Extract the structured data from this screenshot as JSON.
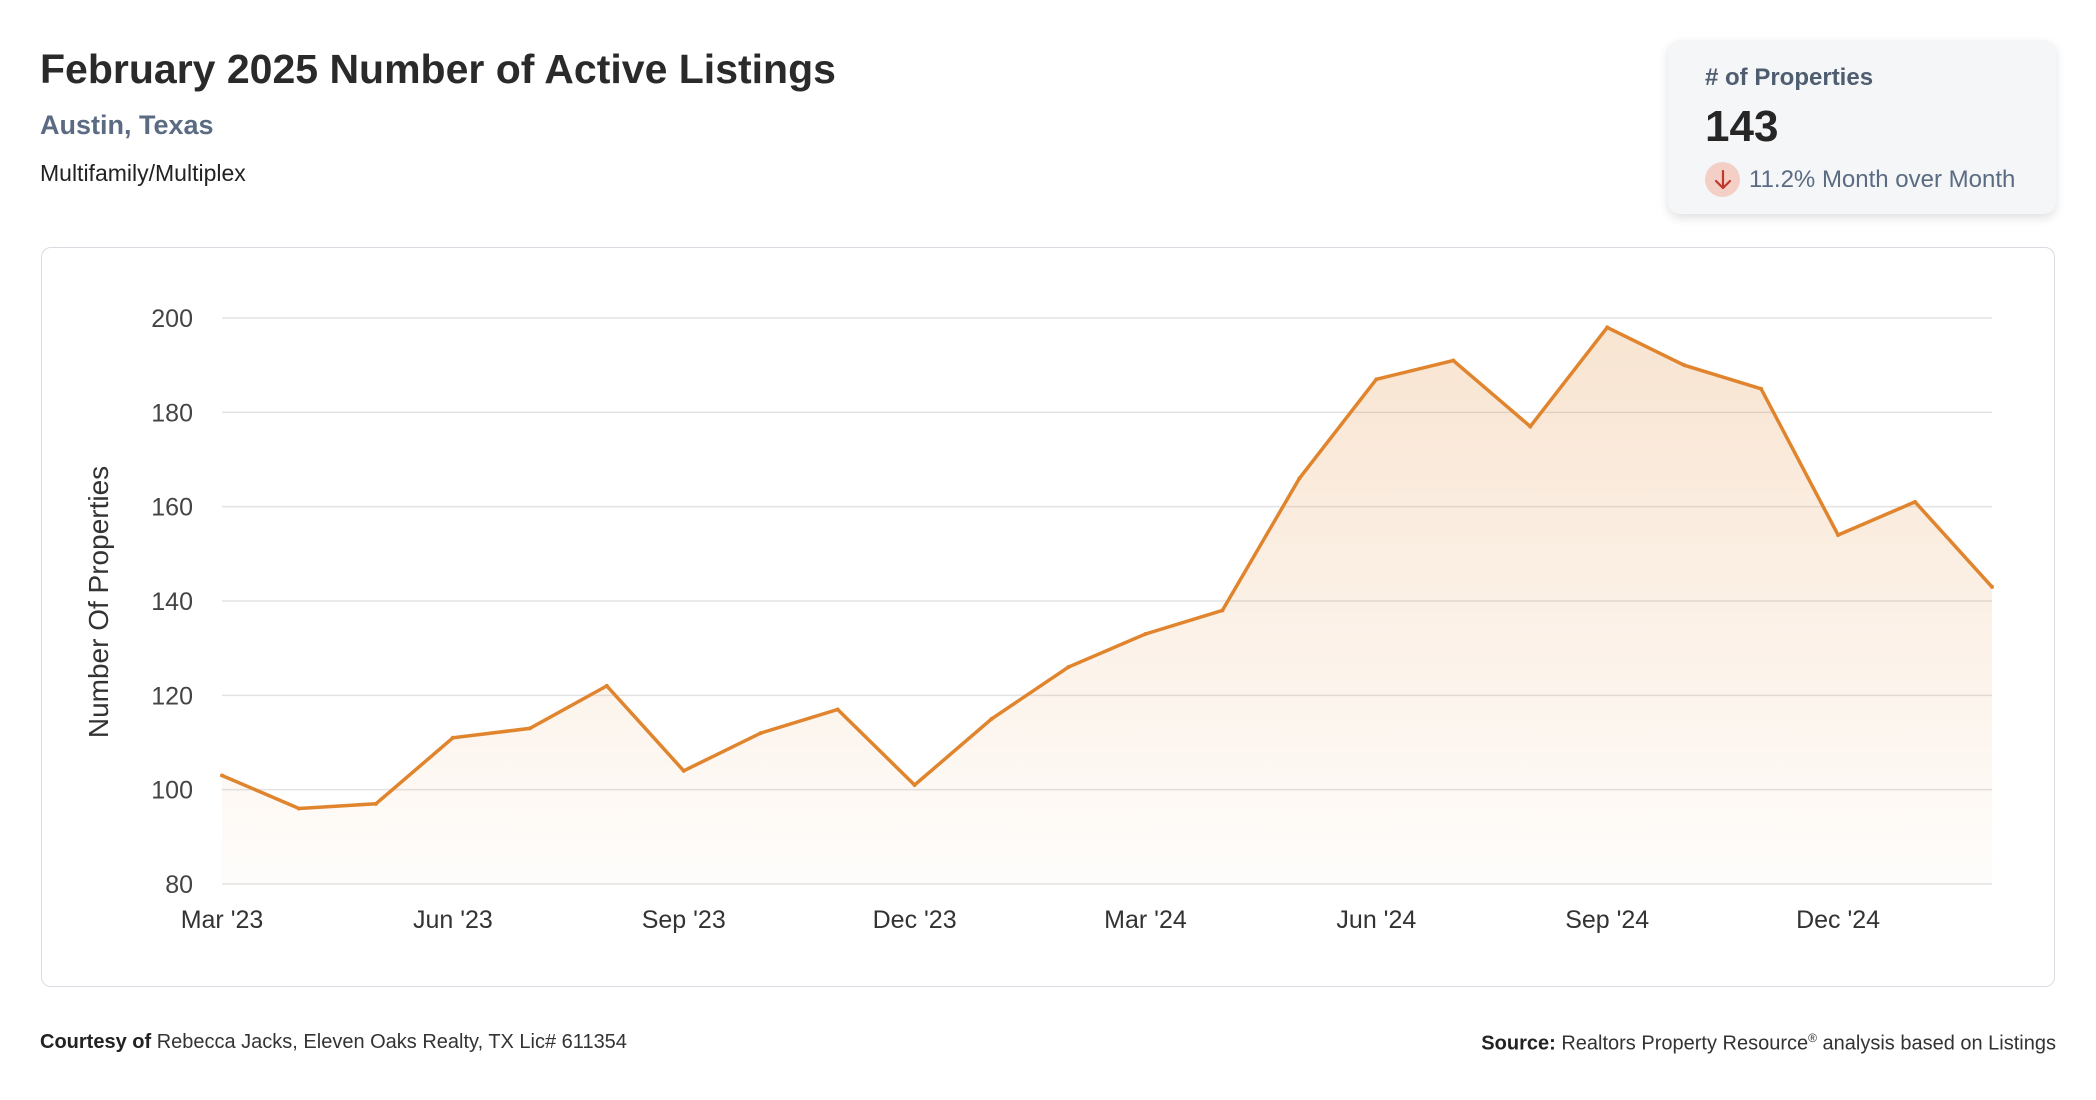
{
  "header": {
    "title": "February 2025 Number of Active Listings",
    "location": "Austin, Texas",
    "property_type": "Multifamily/Multiplex"
  },
  "kpi_card": {
    "label": "# of Properties",
    "value": "143",
    "change_icon": "arrow-down-icon",
    "change_text": "11.2% Month over Month",
    "change_color": "#c0392b"
  },
  "chart_data": {
    "type": "area",
    "title": "",
    "xlabel": "",
    "ylabel": "Number Of Properties",
    "ylim": [
      80,
      200
    ],
    "yticks": [
      "80",
      "100",
      "120",
      "140",
      "160",
      "180",
      "200"
    ],
    "grid": true,
    "line_color": "#e0852e",
    "x": [
      "Mar '23",
      "Apr '23",
      "May '23",
      "Jun '23",
      "Jul '23",
      "Aug '23",
      "Sep '23",
      "Oct '23",
      "Nov '23",
      "Dec '23",
      "Jan '24",
      "Feb '24",
      "Mar '24",
      "Apr '24",
      "May '24",
      "Jun '24",
      "Jul '24",
      "Aug '24",
      "Sep '24",
      "Oct '24",
      "Nov '24",
      "Dec '24",
      "Jan '25",
      "Feb '25"
    ],
    "xtick_labels": [
      "Mar '23",
      "Jun '23",
      "Sep '23",
      "Dec '23",
      "Mar '24",
      "Jun '24",
      "Sep '24",
      "Dec '24"
    ],
    "series": [
      {
        "values": [
          103,
          96,
          97,
          111,
          113,
          122,
          104,
          112,
          117,
          101,
          115,
          126,
          133,
          138,
          166,
          187,
          191,
          177,
          198,
          190,
          185,
          154,
          161,
          143
        ]
      }
    ]
  },
  "footer": {
    "courtesy_label": "Courtesy of",
    "courtesy_text": "Rebecca Jacks, Eleven Oaks Realty, TX Lic# 611354",
    "source_label": "Source:",
    "source_text": "Realtors Property Resource",
    "source_mark": "®",
    "source_suffix": "analysis based on Listings"
  }
}
